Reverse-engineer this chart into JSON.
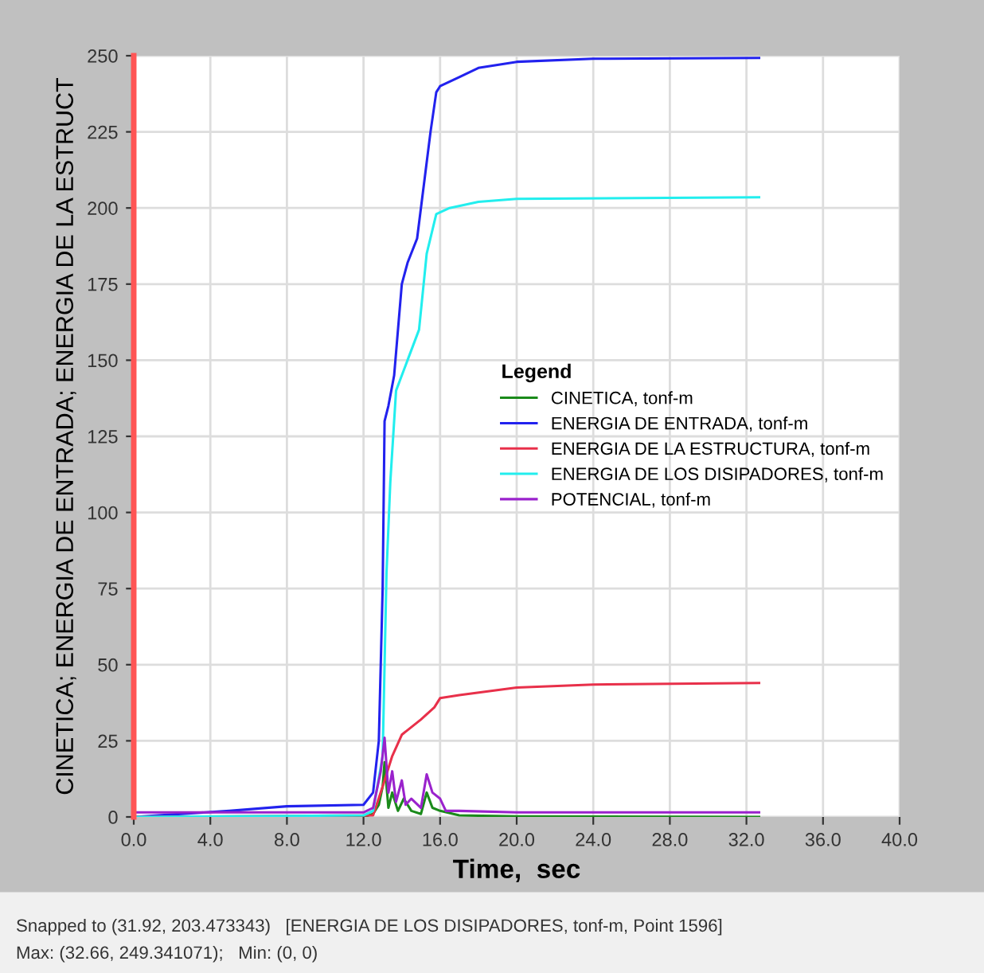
{
  "chart_data": {
    "type": "line",
    "xlabel": "Time,  sec",
    "ylabel": "CINETICA; ENERGIA DE ENTRADA; ENERGIA DE LA ESTRUCT",
    "legend_title": "Legend",
    "xlim": [
      0,
      40
    ],
    "ylim": [
      0,
      250
    ],
    "xticks": [
      {
        "value": 0,
        "label": "0.0"
      },
      {
        "value": 4,
        "label": "4.0"
      },
      {
        "value": 8,
        "label": "8.0"
      },
      {
        "value": 12,
        "label": "12.0"
      },
      {
        "value": 16,
        "label": "16.0"
      },
      {
        "value": 20,
        "label": "20.0"
      },
      {
        "value": 24,
        "label": "24.0"
      },
      {
        "value": 28,
        "label": "28.0"
      },
      {
        "value": 32,
        "label": "32.0"
      },
      {
        "value": 36,
        "label": "36.0"
      },
      {
        "value": 40,
        "label": "40.0"
      }
    ],
    "yticks": [
      0,
      25,
      50,
      75,
      100,
      125,
      150,
      175,
      200,
      225,
      250
    ],
    "grid": true,
    "legend": "right",
    "series": [
      {
        "name": "CINETICA, tonf-m",
        "color": "#1a8a1a",
        "x": [
          0,
          12,
          12.5,
          12.8,
          13.0,
          13.1,
          13.3,
          13.5,
          13.8,
          14.1,
          14.5,
          15.0,
          15.3,
          15.6,
          16.0,
          17.0,
          20.0,
          32.66
        ],
        "values": [
          0,
          0,
          1,
          4,
          10,
          18,
          3,
          8,
          2,
          6,
          2,
          1,
          8,
          3,
          2,
          0.5,
          0.2,
          0
        ]
      },
      {
        "name": "ENERGIA DE ENTRADA, tonf-m",
        "color": "#2222ee",
        "x": [
          0,
          5,
          8,
          12,
          12.5,
          12.8,
          13.0,
          13.1,
          13.3,
          13.6,
          14.0,
          14.3,
          14.8,
          15.2,
          15.5,
          15.8,
          16.0,
          17,
          18,
          20,
          24,
          32.66
        ],
        "values": [
          0,
          2,
          3.5,
          4,
          8,
          25,
          75,
          130,
          135,
          145,
          175,
          182,
          190,
          210,
          225,
          238,
          240,
          243,
          246,
          248,
          249,
          249.3
        ]
      },
      {
        "name": "ENERGIA DE LA ESTRUCTURA, tonf-m",
        "color": "#e8304a",
        "x": [
          0,
          12.5,
          13.0,
          13.5,
          14.0,
          15.0,
          15.7,
          16.0,
          17,
          20,
          24,
          32.66
        ],
        "values": [
          0,
          0.5,
          10,
          20,
          27,
          32,
          36,
          39,
          40,
          42.5,
          43.5,
          44
        ]
      },
      {
        "name": "ENERGIA DE LOS DISIPADORES, tonf-m",
        "color": "#22eeee",
        "x": [
          0,
          12,
          12.5,
          13.0,
          13.2,
          13.4,
          13.7,
          14.3,
          14.9,
          15.3,
          15.8,
          16.5,
          18,
          20,
          32.66
        ],
        "values": [
          0,
          0.5,
          2,
          20,
          80,
          110,
          140,
          150,
          160,
          185,
          198,
          200,
          202,
          203,
          203.5
        ]
      },
      {
        "name": "POTENCIAL, tonf-m",
        "color": "#9a22cc",
        "x": [
          0,
          12,
          12.5,
          12.9,
          13.1,
          13.3,
          13.5,
          13.7,
          14.0,
          14.2,
          14.5,
          15.0,
          15.3,
          15.6,
          16.0,
          16.3,
          17,
          20,
          32.66
        ],
        "values": [
          1.5,
          1.5,
          3,
          15,
          26,
          8,
          15,
          5,
          12,
          4,
          6,
          3,
          14,
          8,
          6,
          2,
          2,
          1.5,
          1.5
        ]
      }
    ],
    "annotations": [
      "Snapped to (31.92, 203.473343)   [ENERGIA DE LOS DISIPADORES, tonf-m, Point 1596]",
      "Max: (32.66, 249.341071);   Min: (0, 0)"
    ]
  }
}
